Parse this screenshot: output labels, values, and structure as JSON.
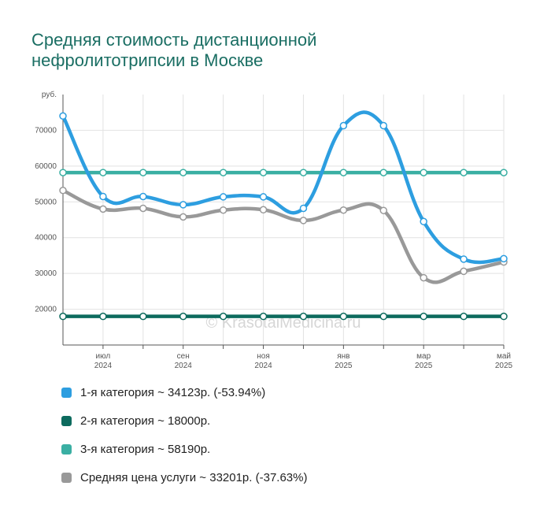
{
  "title_lines": [
    "Средняя стоимость дистанционной",
    "нефролитотрипсии в Москве"
  ],
  "watermark": "© KrasotaiMedicina.ru",
  "chart_data": {
    "type": "line",
    "y_unit_label": "руб.",
    "ylim": [
      10000,
      80000
    ],
    "yticks": [
      20000,
      30000,
      40000,
      50000,
      60000,
      70000
    ],
    "x_points": 12,
    "x_labels": [
      {
        "index": 1,
        "month": "июл",
        "year": "2024"
      },
      {
        "index": 3,
        "month": "сен",
        "year": "2024"
      },
      {
        "index": 5,
        "month": "ноя",
        "year": "2024"
      },
      {
        "index": 7,
        "month": "янв",
        "year": "2025"
      },
      {
        "index": 9,
        "month": "мар",
        "year": "2025"
      },
      {
        "index": 11,
        "month": "май",
        "year": "2025"
      }
    ],
    "grid": true,
    "series": [
      {
        "name": "2-я категория",
        "color": "#0d6b5e",
        "values": [
          18000,
          18000,
          18000,
          18000,
          18000,
          18000,
          18000,
          18000,
          18000,
          18000,
          18000,
          18000
        ]
      },
      {
        "name": "3-я категория",
        "color": "#3aafa3",
        "values": [
          58190,
          58190,
          58190,
          58190,
          58190,
          58190,
          58190,
          58190,
          58190,
          58190,
          58190,
          58190
        ]
      },
      {
        "name": "Средняя цена услуги",
        "color": "#999999",
        "values": [
          53200,
          48000,
          48200,
          45800,
          47700,
          47800,
          44800,
          47700,
          47600,
          28800,
          30600,
          33201
        ]
      },
      {
        "name": "1-я категория",
        "color": "#2d9ee0",
        "values": [
          74000,
          51500,
          51500,
          49200,
          51400,
          51400,
          48200,
          71300,
          71300,
          44500,
          34000,
          34123
        ]
      }
    ]
  },
  "legend": [
    {
      "label": "1-я категория ~ 34123р. (-53.94%)",
      "color": "#2d9ee0"
    },
    {
      "label": "2-я категория ~ 18000р.",
      "color": "#0d6b5e"
    },
    {
      "label": "3-я категория ~ 58190р.",
      "color": "#3aafa3"
    },
    {
      "label": "Средняя цена услуги ~ 33201р. (-37.63%)",
      "color": "#999999"
    }
  ]
}
